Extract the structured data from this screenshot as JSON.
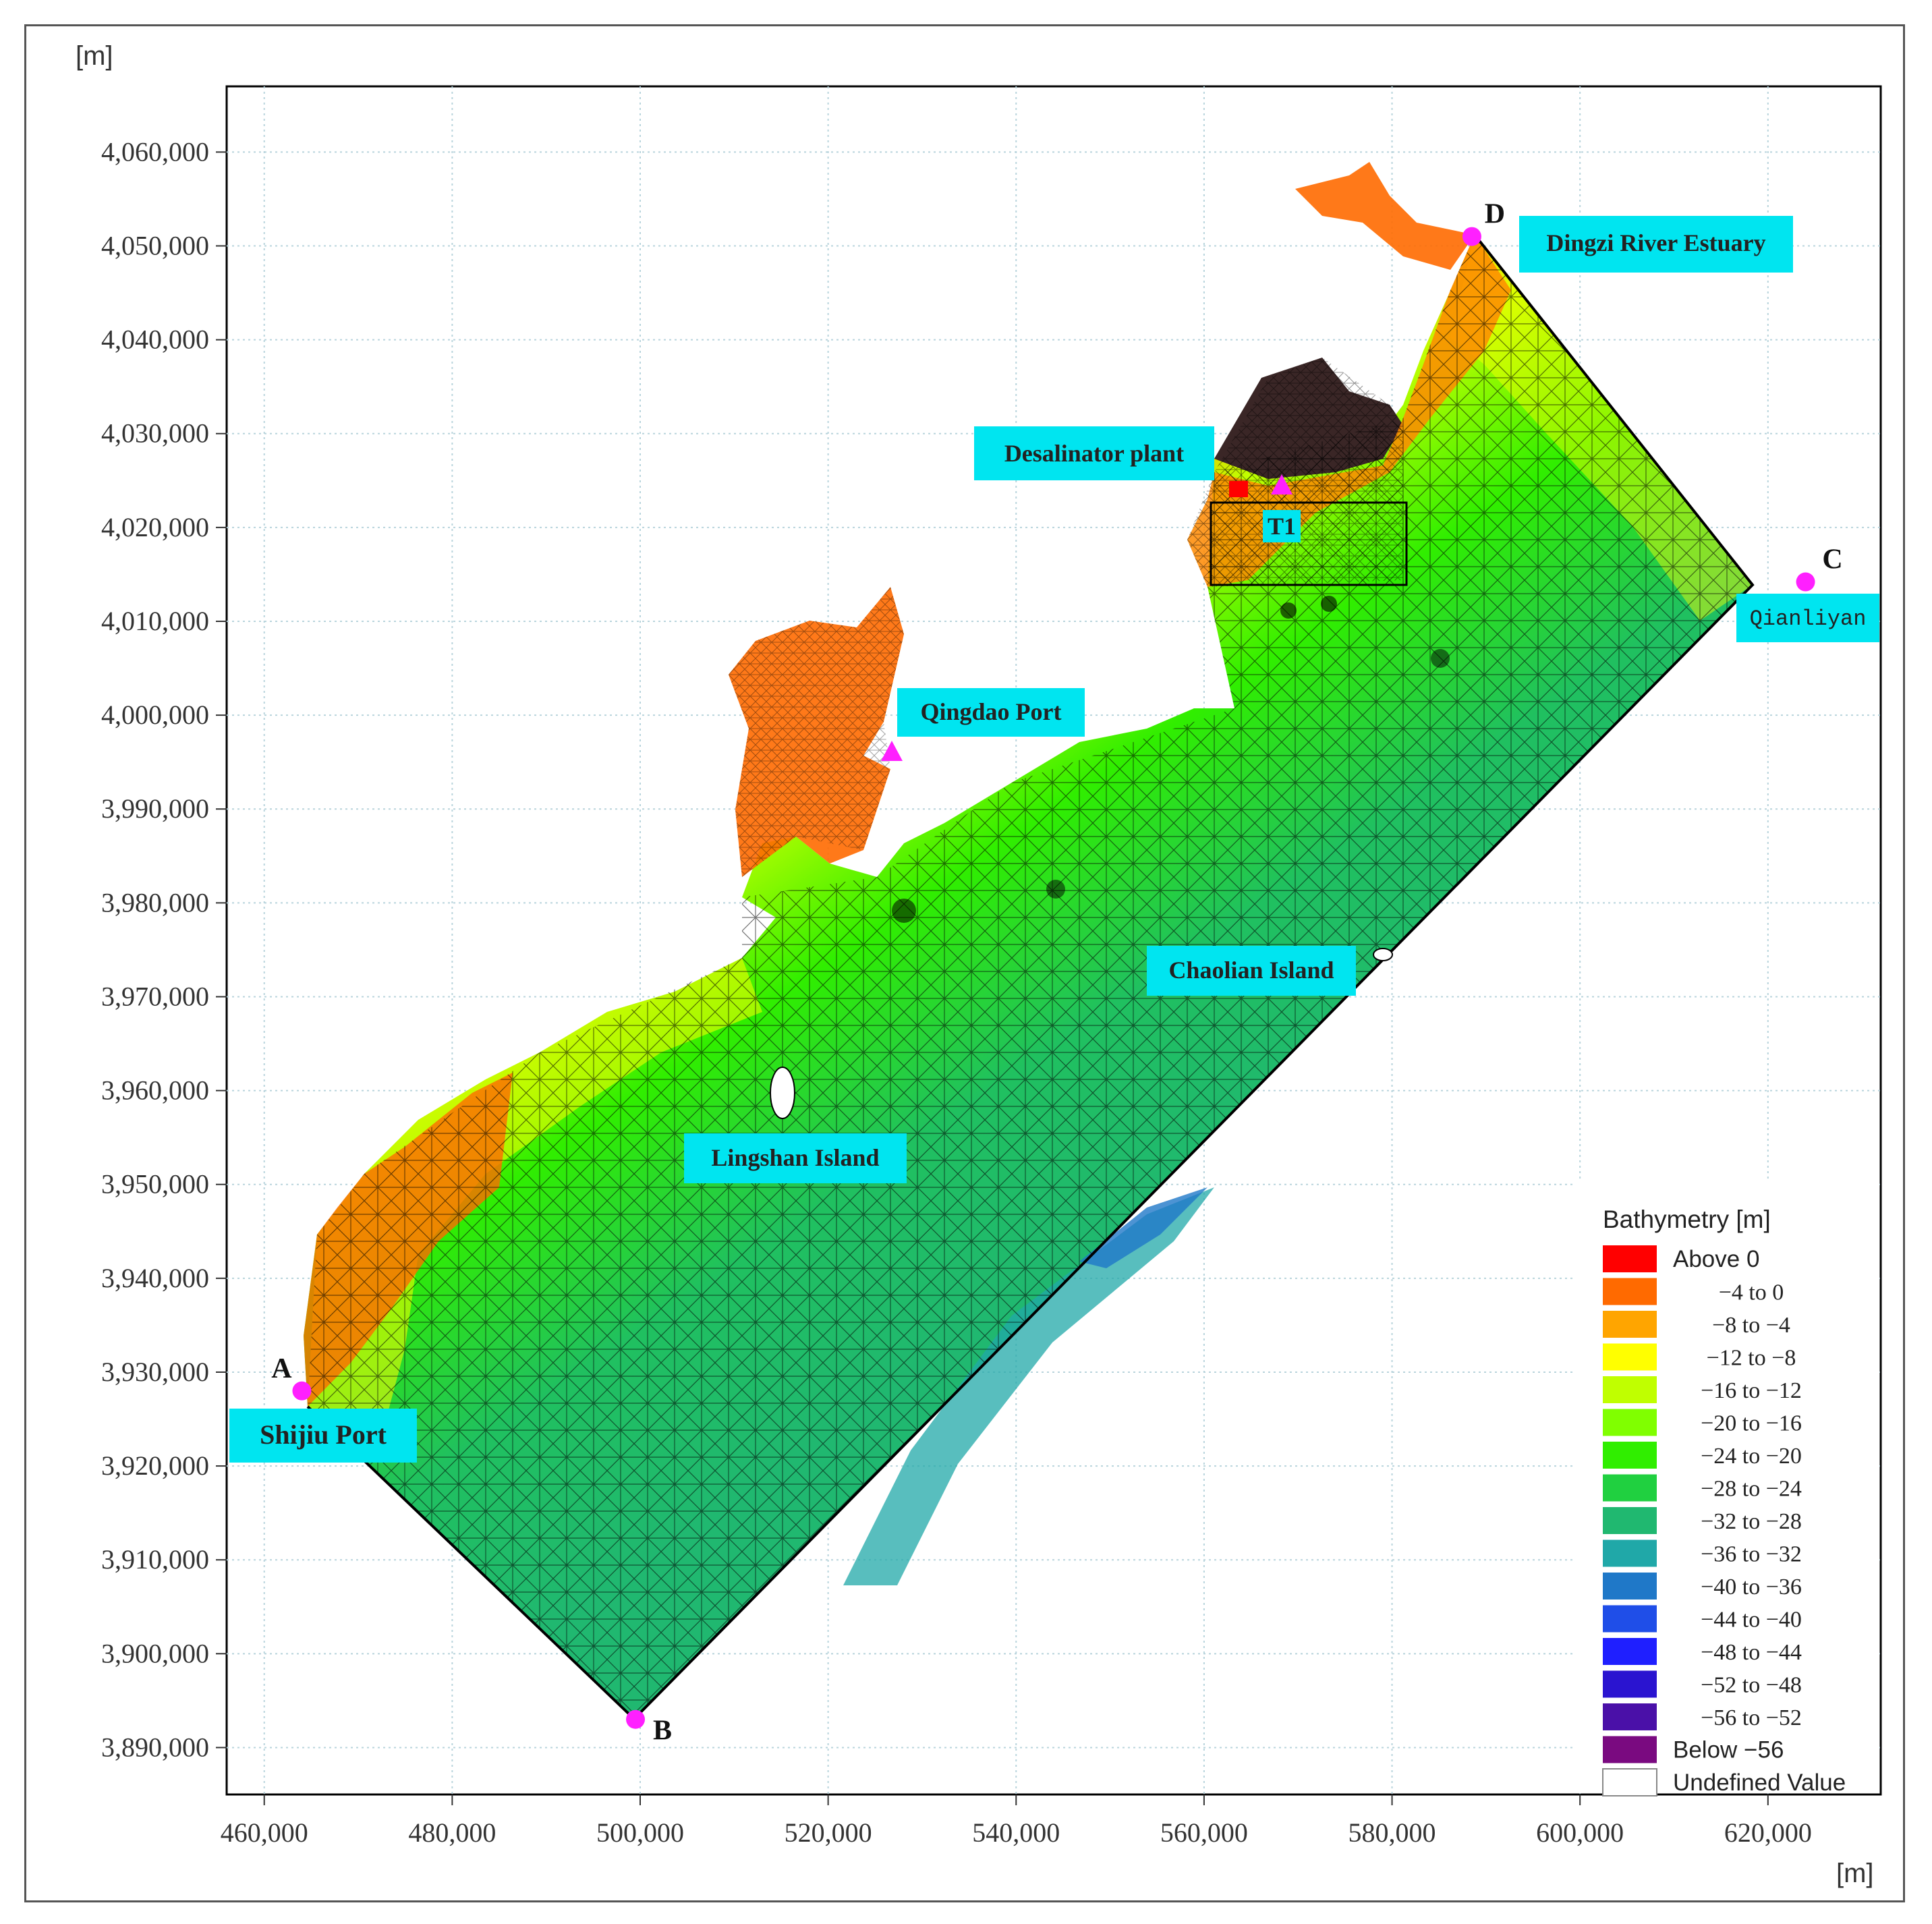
{
  "map": {
    "axis_unit_y": "[m]",
    "axis_unit_x": "[m]",
    "x_ticks": [
      "460,000",
      "480,000",
      "500,000",
      "520,000",
      "540,000",
      "560,000",
      "580,000",
      "600,000",
      "620,000"
    ],
    "y_ticks": [
      "4,060,000",
      "4,050,000",
      "4,040,000",
      "4,030,000",
      "4,020,000",
      "4,010,000",
      "4,000,000",
      "3,990,000",
      "3,980,000",
      "3,970,000",
      "3,960,000",
      "3,950,000",
      "3,940,000",
      "3,930,000",
      "3,920,000",
      "3,910,000",
      "3,900,000",
      "3,890,000"
    ],
    "x_range": [
      456000,
      632000
    ],
    "y_range": [
      3885000,
      4067000
    ],
    "grid": true,
    "points": [
      {
        "letter": "A",
        "label": "Shijiu Port",
        "x": 464000,
        "y": 3928000
      },
      {
        "letter": "B",
        "label": "",
        "x": 499500,
        "y": 3893000
      },
      {
        "letter": "C",
        "label": "Qianliyan",
        "x": 624000,
        "y": 4014200
      },
      {
        "letter": "D",
        "label": "Dingzi River Estuary",
        "x": 588500,
        "y": 4051000
      }
    ],
    "labels": {
      "desalinator": "Desalinator plant",
      "t1": "T1",
      "qingdao": "Qingdao Port",
      "lingshan": "Lingshan Island",
      "chaolian": "Chaolian Island"
    },
    "colors": {
      "callout_bg": "#00e5f0",
      "point": "#ff20ff",
      "plant": "#ff0000",
      "land": "#3a2626"
    }
  },
  "legend": {
    "title": "Bathymetry [m]",
    "items": [
      {
        "label": "Above    0",
        "color": "#ff0000",
        "sans": true
      },
      {
        "label": "−4 to 0",
        "color": "#ff6a00"
      },
      {
        "label": "−8 to −4",
        "color": "#ffa500"
      },
      {
        "label": "−12 to −8",
        "color": "#ffff00"
      },
      {
        "label": "−16 to −12",
        "color": "#c0ff00"
      },
      {
        "label": "−20 to −16",
        "color": "#80ff00"
      },
      {
        "label": "−24 to −20",
        "color": "#30ee00"
      },
      {
        "label": "−28 to −24",
        "color": "#20d040"
      },
      {
        "label": "−32 to −28",
        "color": "#20b870"
      },
      {
        "label": "−36 to −32",
        "color": "#20a8a8"
      },
      {
        "label": "−40 to −36",
        "color": "#1f78c8"
      },
      {
        "label": "−44 to −40",
        "color": "#1f4ee8"
      },
      {
        "label": "−48 to −44",
        "color": "#1f1fff"
      },
      {
        "label": "−52 to −48",
        "color": "#2a14d0"
      },
      {
        "label": "−56 to −52",
        "color": "#4a10a8"
      },
      {
        "label": "Below   −56",
        "color": "#7a0a80",
        "sans": true
      },
      {
        "label": "Undefined Value",
        "color": "#ffffff",
        "sans": true
      }
    ]
  }
}
